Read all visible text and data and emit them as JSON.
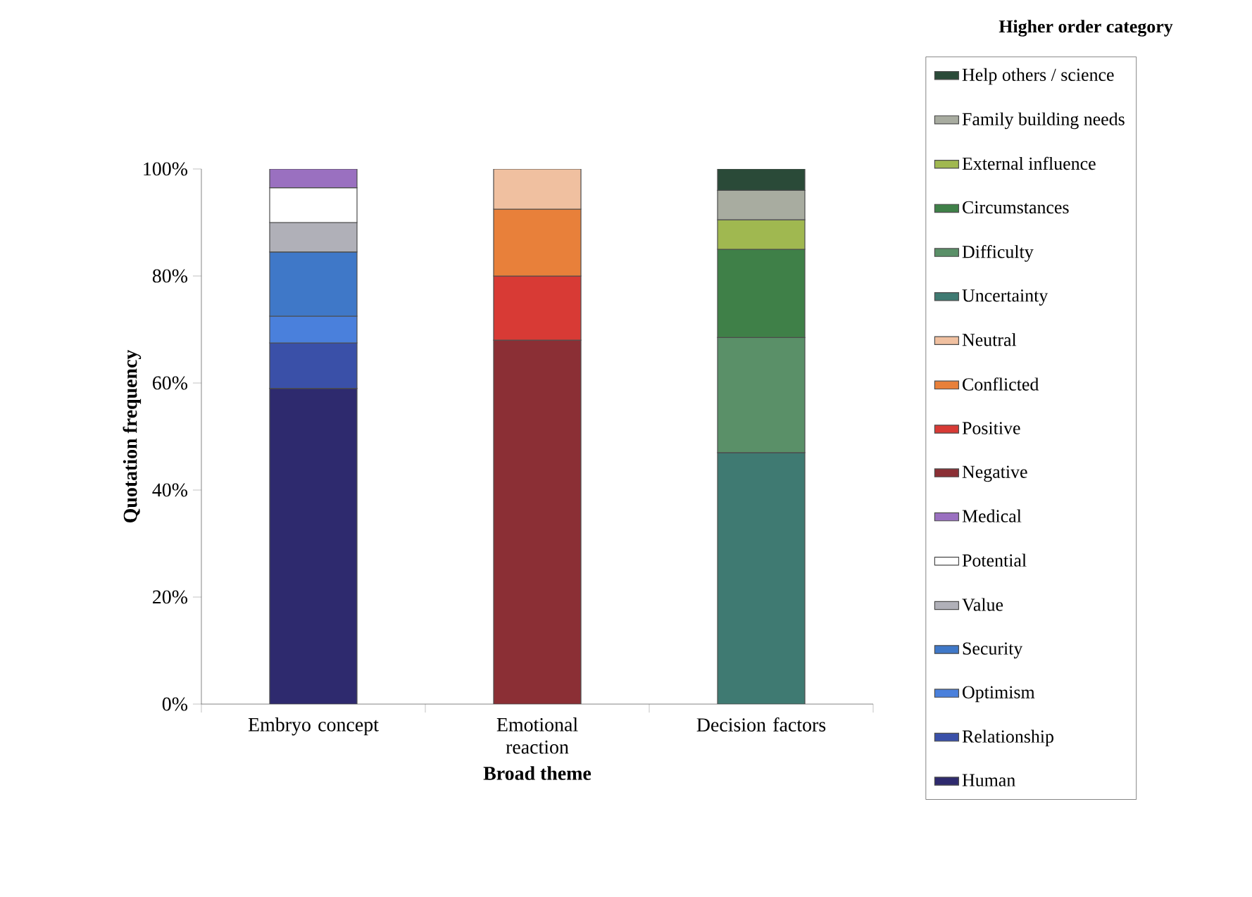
{
  "chart_data": {
    "type": "bar",
    "stacked": true,
    "xlabel": "Broad theme",
    "ylabel": "Quotation frequency",
    "legend_title": "Higher order category",
    "legend": "right",
    "categories": [
      "Embryo concept",
      "Emotional reaction",
      "Decision factors"
    ],
    "ylim": [
      0,
      100
    ],
    "yticks": [
      {
        "value": 0,
        "label": "0%"
      },
      {
        "value": 20,
        "label": "20%"
      },
      {
        "value": 40,
        "label": "40%"
      },
      {
        "value": 60,
        "label": "60%"
      },
      {
        "value": 80,
        "label": "80%"
      },
      {
        "value": 100,
        "label": "100%"
      }
    ],
    "series": [
      {
        "name": "Human",
        "color": "#2e2a6e",
        "values": [
          59,
          null,
          null
        ]
      },
      {
        "name": "Relationship",
        "color": "#3a50a8",
        "values": [
          8.5,
          null,
          null
        ]
      },
      {
        "name": "Optimism",
        "color": "#4a80dc",
        "values": [
          5,
          null,
          null
        ]
      },
      {
        "name": "Security",
        "color": "#3f78c8",
        "values": [
          12,
          null,
          null
        ]
      },
      {
        "name": "Value",
        "color": "#b0b0b8",
        "values": [
          5.5,
          null,
          null
        ]
      },
      {
        "name": "Potential",
        "color": "#ffffff",
        "values": [
          6.5,
          null,
          null
        ]
      },
      {
        "name": "Medical",
        "color": "#9a70c0",
        "values": [
          3.5,
          null,
          null
        ]
      },
      {
        "name": "Negative",
        "color": "#8b2f35",
        "values": [
          null,
          68,
          null
        ]
      },
      {
        "name": "Positive",
        "color": "#d83a35",
        "values": [
          null,
          12,
          null
        ]
      },
      {
        "name": "Conflicted",
        "color": "#e8803a",
        "values": [
          null,
          12.5,
          null
        ]
      },
      {
        "name": "Neutral",
        "color": "#f0c0a0",
        "values": [
          null,
          7.5,
          null
        ]
      },
      {
        "name": "Uncertainty",
        "color": "#3f7a72",
        "values": [
          null,
          null,
          47
        ]
      },
      {
        "name": "Difficulty",
        "color": "#5a9068",
        "values": [
          null,
          null,
          21.5
        ]
      },
      {
        "name": "Circumstances",
        "color": "#3f8048",
        "values": [
          null,
          null,
          16.5
        ]
      },
      {
        "name": "External influence",
        "color": "#a0b850",
        "values": [
          null,
          null,
          5.5
        ]
      },
      {
        "name": "Family building needs",
        "color": "#a8aca0",
        "values": [
          null,
          null,
          5.5
        ]
      },
      {
        "name": "Help others / science",
        "color": "#2a4a38",
        "values": [
          null,
          null,
          4
        ]
      }
    ]
  }
}
